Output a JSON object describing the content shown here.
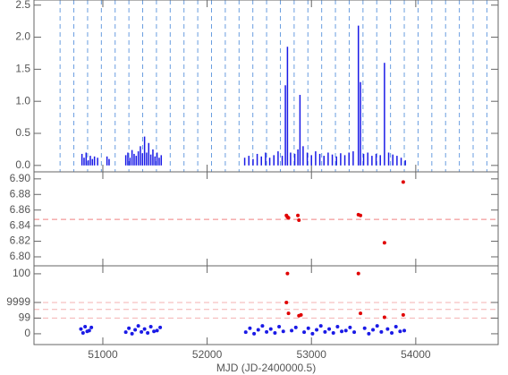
{
  "chart_data": [
    {
      "type": "bar",
      "xlim": [
        50340,
        54790
      ],
      "xticks": [
        51000,
        52000,
        53000,
        54000
      ],
      "ylim": [
        -0.1,
        2.58
      ],
      "yticks": [
        {
          "value": 0,
          "label": "0.0"
        },
        {
          "value": 0.5,
          "label": "0.5"
        },
        {
          "value": 1,
          "label": "1.0"
        },
        {
          "value": 1.5,
          "label": "1.5"
        },
        {
          "value": 2,
          "label": "2.0"
        },
        {
          "value": 2.5,
          "label": "2.5"
        }
      ],
      "vlines": [
        50590,
        50722,
        50854,
        50986,
        51118,
        51250,
        51382,
        51514,
        51646,
        51778,
        51910,
        52042,
        52174,
        52306,
        52438,
        52570,
        52702,
        52834,
        52966,
        53098,
        53230,
        53362,
        53494,
        53626,
        53758,
        53890,
        54022,
        54154,
        54286,
        54418,
        54550,
        54682
      ],
      "vline_color": "#6a9ee0",
      "series": [
        {
          "color": "#1a1ae6",
          "x": [
            50800,
            50820,
            50840,
            50860,
            50880,
            50900,
            50920,
            50950,
            51040,
            51060,
            51220,
            51240,
            51260,
            51280,
            51300,
            51320,
            51340,
            51360,
            51380,
            51400,
            51420,
            51440,
            51460,
            51480,
            51500,
            51520,
            51540,
            51560,
            52360,
            52400,
            52440,
            52480,
            52520,
            52560,
            52600,
            52640,
            52680,
            52720,
            52750,
            52770,
            52800,
            52840,
            52870,
            52890,
            52920,
            52960,
            53000,
            53040,
            53080,
            53120,
            53160,
            53200,
            53240,
            53280,
            53320,
            53360,
            53400,
            53450,
            53470,
            53500,
            53540,
            53580,
            53620,
            53660,
            53700,
            53740,
            53780,
            53820,
            53860,
            53900
          ],
          "values": [
            0.18,
            0.12,
            0.2,
            0.08,
            0.15,
            0.1,
            0.14,
            0.12,
            0.14,
            0.1,
            0.16,
            0.2,
            0.12,
            0.24,
            0.18,
            0.15,
            0.22,
            0.3,
            0.19,
            0.45,
            0.2,
            0.35,
            0.17,
            0.25,
            0.14,
            0.2,
            0.12,
            0.16,
            0.12,
            0.15,
            0.1,
            0.18,
            0.14,
            0.2,
            0.12,
            0.16,
            0.22,
            0.15,
            1.25,
            1.85,
            0.2,
            0.18,
            0.25,
            1.1,
            0.3,
            0.2,
            0.16,
            0.22,
            0.18,
            0.15,
            0.2,
            0.17,
            0.14,
            0.19,
            0.16,
            0.2,
            0.22,
            2.18,
            1.3,
            0.18,
            0.2,
            0.15,
            0.18,
            0.16,
            1.6,
            0.2,
            0.17,
            0.15,
            0.12,
            0.08
          ]
        }
      ]
    },
    {
      "type": "scatter",
      "xlim": [
        50340,
        54790
      ],
      "xticks": [
        51000,
        52000,
        53000,
        54000
      ],
      "ylim": [
        6.7885,
        6.909
      ],
      "yticks": [
        {
          "value": 6.8,
          "label": "6.80"
        },
        {
          "value": 6.82,
          "label": "6.82"
        },
        {
          "value": 6.84,
          "label": "6.84"
        },
        {
          "value": 6.86,
          "label": "6.86"
        },
        {
          "value": 6.88,
          "label": "6.88"
        },
        {
          "value": 6.9,
          "label": "6.90"
        }
      ],
      "hlines": [
        6.848
      ],
      "hline_color": "#f08080",
      "series": [
        {
          "color": "#e00000",
          "x": [
            52760,
            52770,
            52780,
            52870,
            52880,
            53450,
            53470,
            53700,
            53880
          ],
          "values": [
            6.853,
            6.851,
            6.85,
            6.853,
            6.847,
            6.854,
            6.853,
            6.818,
            6.896
          ]
        }
      ]
    },
    {
      "type": "scatter",
      "xlim": [
        50340,
        54790
      ],
      "xticks": [
        51000,
        52000,
        53000,
        54000
      ],
      "xlabel": "MJD (JD-2400000.5)",
      "ylim": [
        -0.69,
        4.34
      ],
      "yticks": [
        0,
        {
          "value": 1,
          "label": "99"
        },
        {
          "value": 2,
          "label": "9999"
        },
        {
          "value": 3.83,
          "label": "100"
        }
      ],
      "hlines": [
        1,
        1.55,
        2
      ],
      "hline_color": "#f4b0b0",
      "series": [
        {
          "color": "#1a1ae6",
          "x": [
            50790,
            50810,
            50830,
            50850,
            50870,
            50890,
            51220,
            51250,
            51280,
            51310,
            51340,
            51370,
            51400,
            51430,
            51460,
            51490,
            51520,
            51550,
            52370,
            52410,
            52450,
            52490,
            52530,
            52570,
            52610,
            52650,
            52690,
            52730,
            52810,
            52850,
            52930,
            52970,
            53010,
            53050,
            53090,
            53130,
            53170,
            53210,
            53250,
            53290,
            53330,
            53370,
            53410,
            53510,
            53550,
            53590,
            53630,
            53670,
            53730,
            53770,
            53810,
            53850,
            53890
          ],
          "values": [
            0.3,
            0.05,
            0.45,
            0.15,
            0.2,
            0.4,
            0.1,
            0.35,
            0.0,
            0.25,
            0.5,
            0.12,
            0.3,
            0.05,
            0.45,
            0.15,
            0.2,
            0.4,
            0.1,
            0.35,
            0.0,
            0.25,
            0.5,
            0.12,
            0.3,
            0.05,
            0.45,
            0.15,
            0.2,
            0.4,
            0.1,
            0.35,
            0.0,
            0.25,
            0.5,
            0.12,
            0.3,
            0.05,
            0.45,
            0.15,
            0.2,
            0.4,
            0.1,
            0.35,
            0.0,
            0.25,
            0.5,
            0.12,
            0.3,
            0.05,
            0.45,
            0.15,
            0.2
          ]
        },
        {
          "color": "#e00000",
          "x": [
            52760,
            52770,
            52780,
            52880,
            52900,
            53450,
            53470,
            53700,
            53880
          ],
          "values": [
            2.0,
            3.85,
            1.3,
            1.15,
            1.2,
            3.85,
            1.3,
            1.05,
            1.2
          ]
        }
      ]
    }
  ]
}
